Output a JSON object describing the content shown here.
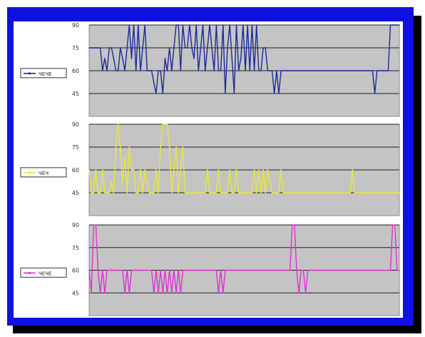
{
  "chart_data": [
    {
      "type": "line",
      "legend": {
        "label": "ЧЕЧЕ",
        "position": "left"
      },
      "color": "#1c2a9a",
      "ylim": [
        30,
        90
      ],
      "yticks": [
        "90",
        "75",
        "60",
        "45"
      ],
      "grid": true,
      "x": [
        0,
        1,
        2,
        3,
        4,
        5,
        6,
        7,
        8,
        9,
        10,
        11,
        12,
        13,
        14,
        15,
        16,
        17,
        18,
        19,
        20,
        21,
        22,
        23,
        24,
        25,
        26,
        27,
        28,
        29,
        30,
        31,
        32,
        33,
        34,
        35,
        36,
        37,
        38,
        39,
        40,
        41,
        42,
        43,
        44,
        45,
        46,
        47,
        48,
        49,
        50,
        51,
        52,
        53,
        54,
        55,
        56,
        57,
        58,
        59,
        60,
        61,
        62,
        63,
        64,
        65,
        66,
        67,
        68,
        69,
        70,
        71,
        72,
        73,
        74,
        75,
        76,
        77,
        78,
        79,
        80,
        81,
        82,
        83,
        84,
        85,
        86,
        87,
        88,
        89,
        90,
        91,
        92,
        93,
        94,
        95,
        96,
        97,
        98,
        99,
        100,
        101,
        102,
        103,
        104,
        105,
        106,
        107,
        108,
        109,
        110,
        111,
        112,
        113,
        114,
        115,
        116,
        117,
        118,
        119,
        120,
        121,
        122,
        123,
        124,
        125,
        126,
        127,
        128,
        129,
        130,
        131,
        132,
        133,
        134,
        135,
        136,
        137,
        138,
        139
      ],
      "values": [
        75,
        75,
        75,
        75,
        75,
        75,
        60,
        68,
        60,
        75,
        75,
        68,
        60,
        60,
        75,
        68,
        60,
        75,
        90,
        68,
        90,
        60,
        90,
        60,
        75,
        90,
        60,
        60,
        60,
        52,
        45,
        60,
        60,
        45,
        68,
        60,
        75,
        60,
        75,
        90,
        90,
        60,
        90,
        75,
        75,
        90,
        75,
        68,
        90,
        60,
        75,
        90,
        60,
        75,
        90,
        75,
        60,
        90,
        60,
        60,
        90,
        45,
        75,
        90,
        68,
        45,
        90,
        60,
        68,
        90,
        60,
        90,
        60,
        90,
        60,
        90,
        60,
        60,
        75,
        75,
        60,
        60,
        60,
        45,
        60,
        45,
        60,
        60,
        60,
        60,
        60,
        60,
        60,
        60,
        60,
        60,
        60,
        60,
        60,
        60,
        60,
        60,
        60,
        60,
        60,
        60,
        60,
        60,
        60,
        60,
        60,
        60,
        60,
        60,
        60,
        60,
        60,
        60,
        60,
        60,
        60,
        60,
        60,
        60,
        60,
        60,
        60,
        60,
        45,
        60,
        60,
        60,
        60,
        60,
        60,
        90,
        90,
        90,
        90,
        90
      ]
    },
    {
      "type": "line",
      "legend": {
        "label": "ЧЕЧ",
        "position": "left"
      },
      "color": "#e8e83a",
      "ylim": [
        30,
        90
      ],
      "yticks": [
        "90",
        "75",
        "60",
        "45"
      ],
      "grid": true,
      "x": [
        0,
        1,
        2,
        3,
        4,
        5,
        6,
        7,
        8,
        9,
        10,
        11,
        12,
        13,
        14,
        15,
        16,
        17,
        18,
        19,
        20,
        21,
        22,
        23,
        24,
        25,
        26,
        27,
        28,
        29,
        30,
        31,
        32,
        33,
        34,
        35,
        36,
        37,
        38,
        39,
        40,
        41,
        42,
        43,
        44,
        45,
        46,
        47,
        48,
        49,
        50,
        51,
        52,
        53,
        54,
        55,
        56,
        57,
        58,
        59,
        60,
        61,
        62,
        63,
        64,
        65,
        66,
        67,
        68,
        69,
        70,
        71,
        72,
        73,
        74,
        75,
        76,
        77,
        78,
        79,
        80,
        81,
        82,
        83,
        84,
        85,
        86,
        87,
        88,
        89,
        90,
        91,
        92,
        93,
        94,
        95,
        96,
        97,
        98,
        99,
        100,
        101,
        102,
        103,
        104,
        105,
        106,
        107,
        108,
        109,
        110,
        111,
        112,
        113,
        114,
        115,
        116,
        117,
        118,
        119,
        120,
        121,
        122,
        123,
        124,
        125,
        126,
        127,
        128,
        129,
        130,
        131,
        132,
        133,
        134,
        135,
        136,
        137,
        138,
        139
      ],
      "values": [
        60,
        45,
        45,
        60,
        45,
        45,
        60,
        45,
        45,
        45,
        52,
        45,
        75,
        90,
        75,
        52,
        68,
        45,
        75,
        60,
        60,
        45,
        45,
        60,
        45,
        60,
        52,
        45,
        45,
        45,
        60,
        45,
        75,
        90,
        90,
        90,
        75,
        45,
        60,
        75,
        45,
        60,
        75,
        45,
        45,
        45,
        45,
        45,
        45,
        45,
        45,
        45,
        45,
        60,
        45,
        45,
        45,
        45,
        60,
        45,
        45,
        45,
        45,
        60,
        45,
        45,
        60,
        45,
        45,
        45,
        45,
        45,
        45,
        45,
        60,
        45,
        60,
        45,
        60,
        45,
        60,
        52,
        45,
        45,
        45,
        45,
        60,
        45,
        45,
        45,
        45,
        45,
        45,
        45,
        45,
        45,
        45,
        45,
        45,
        45,
        45,
        45,
        45,
        45,
        45,
        45,
        45,
        45,
        45,
        45,
        45,
        45,
        45,
        45,
        45,
        45,
        45,
        45,
        60,
        45,
        45,
        45,
        45,
        45,
        45,
        45,
        45,
        45,
        45,
        45,
        45,
        45,
        45,
        45,
        45,
        45,
        45,
        45,
        45,
        45
      ]
    },
    {
      "type": "line",
      "legend": {
        "label": "ЧЕЧЕ",
        "position": "left"
      },
      "color": "#e030d0",
      "ylim": [
        30,
        90
      ],
      "yticks": [
        "90",
        "75",
        "60",
        "45"
      ],
      "grid": true,
      "x": [
        0,
        1,
        2,
        3,
        4,
        5,
        6,
        7,
        8,
        9,
        10,
        11,
        12,
        13,
        14,
        15,
        16,
        17,
        18,
        19,
        20,
        21,
        22,
        23,
        24,
        25,
        26,
        27,
        28,
        29,
        30,
        31,
        32,
        33,
        34,
        35,
        36,
        37,
        38,
        39,
        40,
        41,
        42,
        43,
        44,
        45,
        46,
        47,
        48,
        49,
        50,
        51,
        52,
        53,
        54,
        55,
        56,
        57,
        58,
        59,
        60,
        61,
        62,
        63,
        64,
        65,
        66,
        67,
        68,
        69,
        70,
        71,
        72,
        73,
        74,
        75,
        76,
        77,
        78,
        79,
        80,
        81,
        82,
        83,
        84,
        85,
        86,
        87,
        88,
        89,
        90,
        91,
        92,
        93,
        94,
        95,
        96,
        97,
        98,
        99,
        100,
        101,
        102,
        103,
        104,
        105,
        106,
        107,
        108,
        109,
        110,
        111,
        112,
        113,
        114,
        115,
        116,
        117,
        118,
        119,
        120,
        121,
        122,
        123,
        124,
        125,
        126,
        127,
        128,
        129,
        130,
        131,
        132,
        133,
        134,
        135,
        136,
        137,
        138,
        139
      ],
      "values": [
        60,
        45,
        90,
        90,
        60,
        45,
        60,
        45,
        60,
        60,
        60,
        60,
        60,
        60,
        60,
        60,
        45,
        60,
        45,
        60,
        60,
        60,
        60,
        60,
        60,
        60,
        60,
        60,
        60,
        45,
        60,
        45,
        60,
        45,
        60,
        45,
        60,
        45,
        60,
        45,
        60,
        45,
        60,
        60,
        60,
        60,
        60,
        60,
        60,
        60,
        60,
        60,
        60,
        60,
        60,
        60,
        60,
        60,
        45,
        60,
        45,
        60,
        60,
        60,
        60,
        60,
        60,
        60,
        60,
        60,
        60,
        60,
        60,
        60,
        60,
        60,
        60,
        60,
        60,
        60,
        60,
        60,
        60,
        60,
        60,
        60,
        60,
        60,
        60,
        60,
        60,
        90,
        90,
        60,
        45,
        60,
        60,
        45,
        60,
        60,
        60,
        60,
        60,
        60,
        60,
        60,
        60,
        60,
        60,
        60,
        60,
        60,
        60,
        60,
        60,
        60,
        60,
        60,
        60,
        60,
        60,
        60,
        60,
        60,
        60,
        60,
        60,
        60,
        60,
        60,
        60,
        60,
        60,
        60,
        60,
        60,
        90,
        90,
        60,
        60
      ]
    }
  ]
}
